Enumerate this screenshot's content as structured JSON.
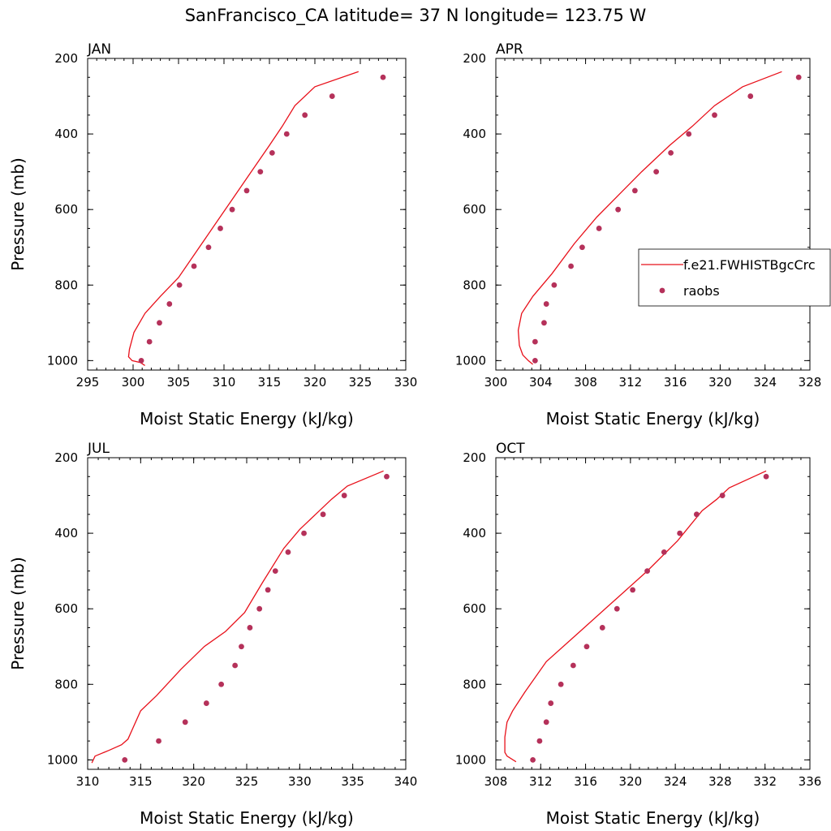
{
  "figure": {
    "title": "SanFrancisco_CA  latitude= 37 N longitude= 123.75 W"
  },
  "legend": {
    "items": [
      {
        "label": "f.e21.FWHISTBgcCrc",
        "kind": "line",
        "color": "#e8101a"
      },
      {
        "label": "raobs",
        "kind": "marker",
        "color": "#b5315a"
      }
    ]
  },
  "colors": {
    "model_line": "#e8101a",
    "raobs_marker": "#b5315a"
  },
  "chart_data": [
    {
      "type": "line",
      "panel": "JAN",
      "title": "JAN",
      "xlabel": "Moist Static Energy (kJ/kg)",
      "ylabel": "Pressure (mb)",
      "xlim": [
        295,
        330
      ],
      "ylim": [
        1025,
        200
      ],
      "xticks": [
        295,
        300,
        305,
        310,
        315,
        320,
        325,
        330
      ],
      "yticks": [
        200,
        400,
        600,
        800,
        1000
      ],
      "series": [
        {
          "name": "f.e21.FWHISTBgcCrc",
          "style": "line",
          "x": [
            324.8,
            320.0,
            317.8,
            316.4,
            315.0,
            313.0,
            311.0,
            309.0,
            307.0,
            305.0,
            303.0,
            301.3,
            300.1,
            299.6,
            299.5,
            299.9,
            300.8,
            301.3
          ],
          "y": [
            235,
            275,
            325,
            380,
            430,
            500,
            570,
            640,
            710,
            780,
            830,
            875,
            925,
            970,
            990,
            1000,
            1005,
            1013
          ]
        },
        {
          "name": "raobs",
          "style": "marker",
          "x": [
            327.5,
            321.9,
            318.9,
            316.9,
            315.3,
            314.0,
            312.5,
            310.9,
            309.6,
            308.3,
            306.7,
            305.1,
            304.0,
            302.9,
            301.8,
            300.9
          ],
          "y": [
            250,
            300,
            350,
            400,
            450,
            500,
            550,
            600,
            650,
            700,
            750,
            800,
            850,
            900,
            950,
            1000
          ]
        }
      ]
    },
    {
      "type": "line",
      "panel": "APR",
      "title": "APR",
      "xlabel": "Moist Static Energy (kJ/kg)",
      "ylabel": "",
      "xlim": [
        300,
        328
      ],
      "ylim": [
        1025,
        200
      ],
      "xticks": [
        300,
        304,
        308,
        312,
        316,
        320,
        324,
        328
      ],
      "yticks": [
        200,
        400,
        600,
        800,
        1000
      ],
      "series": [
        {
          "name": "f.e21.FWHISTBgcCrc",
          "style": "line",
          "x": [
            325.5,
            322.0,
            319.5,
            317.5,
            315.5,
            313.0,
            311.0,
            309.0,
            307.0,
            305.0,
            303.3,
            302.3,
            302.0,
            302.1,
            302.4,
            302.9,
            303.3
          ],
          "y": [
            235,
            275,
            325,
            380,
            430,
            500,
            560,
            620,
            690,
            770,
            830,
            875,
            920,
            960,
            985,
            1000,
            1010
          ]
        },
        {
          "name": "raobs",
          "style": "marker",
          "x": [
            327.0,
            322.7,
            319.5,
            317.2,
            315.6,
            314.3,
            312.4,
            310.9,
            309.2,
            307.7,
            306.7,
            305.2,
            304.5,
            304.3,
            303.5,
            303.5
          ],
          "y": [
            250,
            300,
            350,
            400,
            450,
            500,
            550,
            600,
            650,
            700,
            750,
            800,
            850,
            900,
            950,
            1000
          ]
        }
      ]
    },
    {
      "type": "line",
      "panel": "JUL",
      "title": "JUL",
      "xlabel": "Moist Static Energy (kJ/kg)",
      "ylabel": "Pressure (mb)",
      "xlim": [
        310,
        340
      ],
      "ylim": [
        1025,
        200
      ],
      "xticks": [
        310,
        315,
        320,
        325,
        330,
        335,
        340
      ],
      "yticks": [
        200,
        400,
        600,
        800,
        1000
      ],
      "series": [
        {
          "name": "f.e21.FWHISTBgcCrc",
          "style": "line",
          "x": [
            337.9,
            334.5,
            333.0,
            331.5,
            330.0,
            328.5,
            326.5,
            324.8,
            323.0,
            321.0,
            318.8,
            316.5,
            315.0,
            314.2,
            313.8,
            313.2,
            312.0,
            310.7,
            310.4
          ],
          "y": [
            235,
            275,
            310,
            350,
            390,
            440,
            530,
            610,
            660,
            700,
            760,
            830,
            870,
            920,
            945,
            960,
            975,
            990,
            1008
          ]
        },
        {
          "name": "raobs",
          "style": "marker",
          "x": [
            338.2,
            334.2,
            332.2,
            330.4,
            328.9,
            327.7,
            327.0,
            326.2,
            325.3,
            324.5,
            323.9,
            322.6,
            321.2,
            319.2,
            316.7,
            313.5
          ],
          "y": [
            250,
            300,
            350,
            400,
            450,
            500,
            550,
            600,
            650,
            700,
            750,
            800,
            850,
            900,
            950,
            1000
          ]
        }
      ]
    },
    {
      "type": "line",
      "panel": "OCT",
      "title": "OCT",
      "xlabel": "Moist Static Energy (kJ/kg)",
      "ylabel": "",
      "xlim": [
        308,
        336
      ],
      "ylim": [
        1025,
        200
      ],
      "xticks": [
        308,
        312,
        316,
        320,
        324,
        328,
        332,
        336
      ],
      "yticks": [
        200,
        400,
        600,
        800,
        1000
      ],
      "series": [
        {
          "name": "f.e21.FWHISTBgcCrc",
          "style": "line",
          "x": [
            332.1,
            328.8,
            327.7,
            326.4,
            324.2,
            321.5,
            318.5,
            315.5,
            312.5,
            310.6,
            309.5,
            309.0,
            308.8,
            308.8,
            309.0,
            309.8
          ],
          "y": [
            235,
            280,
            310,
            340,
            420,
            500,
            580,
            660,
            740,
            820,
            870,
            900,
            940,
            980,
            990,
            1005
          ]
        },
        {
          "name": "raobs",
          "style": "marker",
          "x": [
            332.1,
            328.2,
            325.9,
            324.4,
            323.0,
            321.5,
            320.2,
            318.8,
            317.5,
            316.1,
            314.9,
            313.8,
            312.9,
            312.5,
            311.9,
            311.3
          ],
          "y": [
            250,
            300,
            350,
            400,
            450,
            500,
            550,
            600,
            650,
            700,
            750,
            800,
            850,
            900,
            950,
            1000
          ]
        }
      ]
    }
  ]
}
